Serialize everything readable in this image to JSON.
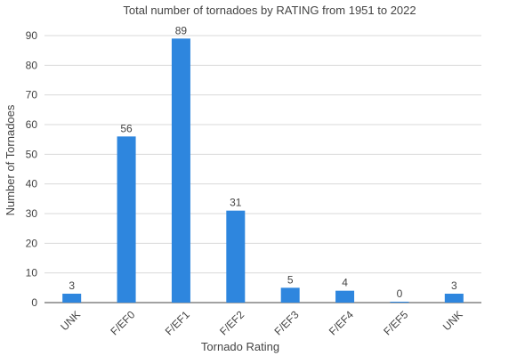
{
  "chart_data": {
    "type": "bar",
    "title": "Total number of tornadoes by RATING from 1951 to 2022",
    "xlabel": "Tornado Rating",
    "ylabel": "Number of Tornadoes",
    "categories": [
      "UNK",
      "F/EF0",
      "F/EF1",
      "F/EF2",
      "F/EF3",
      "F/EF4",
      "F/EF5",
      "UNK"
    ],
    "values": [
      3,
      56,
      89,
      31,
      5,
      4,
      0,
      3
    ],
    "ylim": [
      0,
      90
    ],
    "yticks": [
      0,
      10,
      20,
      30,
      40,
      50,
      60,
      70,
      80,
      90
    ],
    "grid": true,
    "legend": "none",
    "bar_color": "#2e86de"
  }
}
